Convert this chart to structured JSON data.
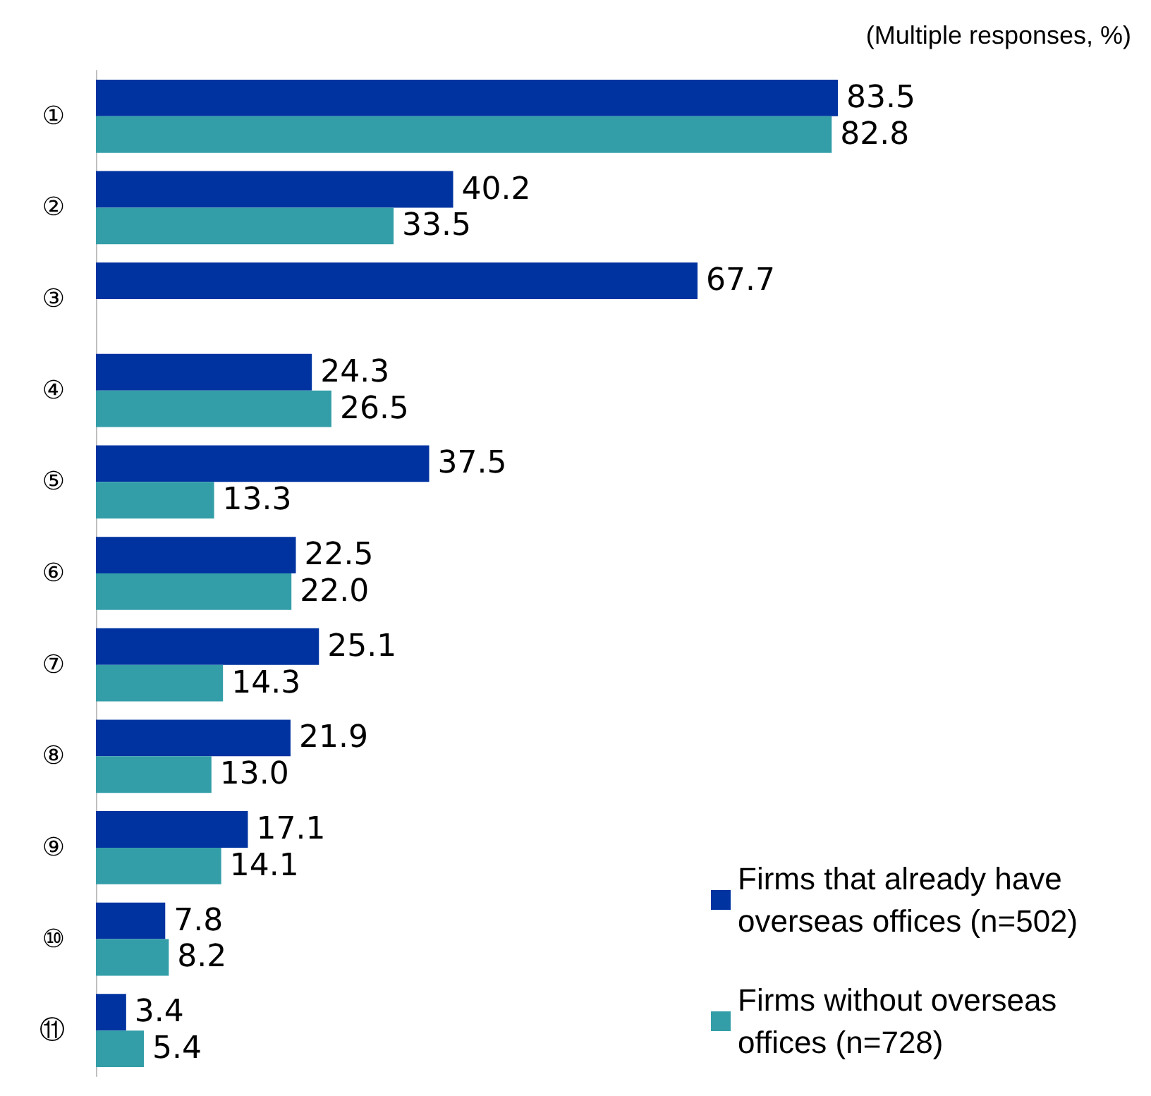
{
  "chart_data": {
    "type": "bar",
    "orientation": "horizontal",
    "categories": [
      "①",
      "②",
      "③",
      "④",
      "⑤",
      "⑥",
      "⑦",
      "⑧",
      "⑨",
      "⑩",
      "⑪"
    ],
    "series": [
      {
        "name": "Firms that already have overseas offices (n=502)",
        "color": "#0033a0",
        "values": [
          83.5,
          40.2,
          67.7,
          24.3,
          37.5,
          22.5,
          25.1,
          21.9,
          17.1,
          7.8,
          3.4
        ],
        "value_labels": [
          "83.5",
          "40.2",
          "67.7",
          "24.3",
          "37.5",
          "22.5",
          "25.1",
          "21.9",
          "17.1",
          "7.8",
          "3.4"
        ]
      },
      {
        "name": "Firms without overseas offices (n=728)",
        "color": "#339ea8",
        "values": [
          82.8,
          33.5,
          null,
          26.5,
          13.3,
          22.0,
          14.3,
          13.0,
          14.1,
          8.2,
          5.4
        ],
        "value_labels": [
          "82.8",
          "33.5",
          null,
          "26.5",
          "13.3",
          "22.0",
          "14.3",
          "13.0",
          "14.1",
          "8.2",
          "5.4"
        ]
      }
    ],
    "legend": "bottom right",
    "annotations": [
      "(Multiple responses, %)"
    ]
  }
}
